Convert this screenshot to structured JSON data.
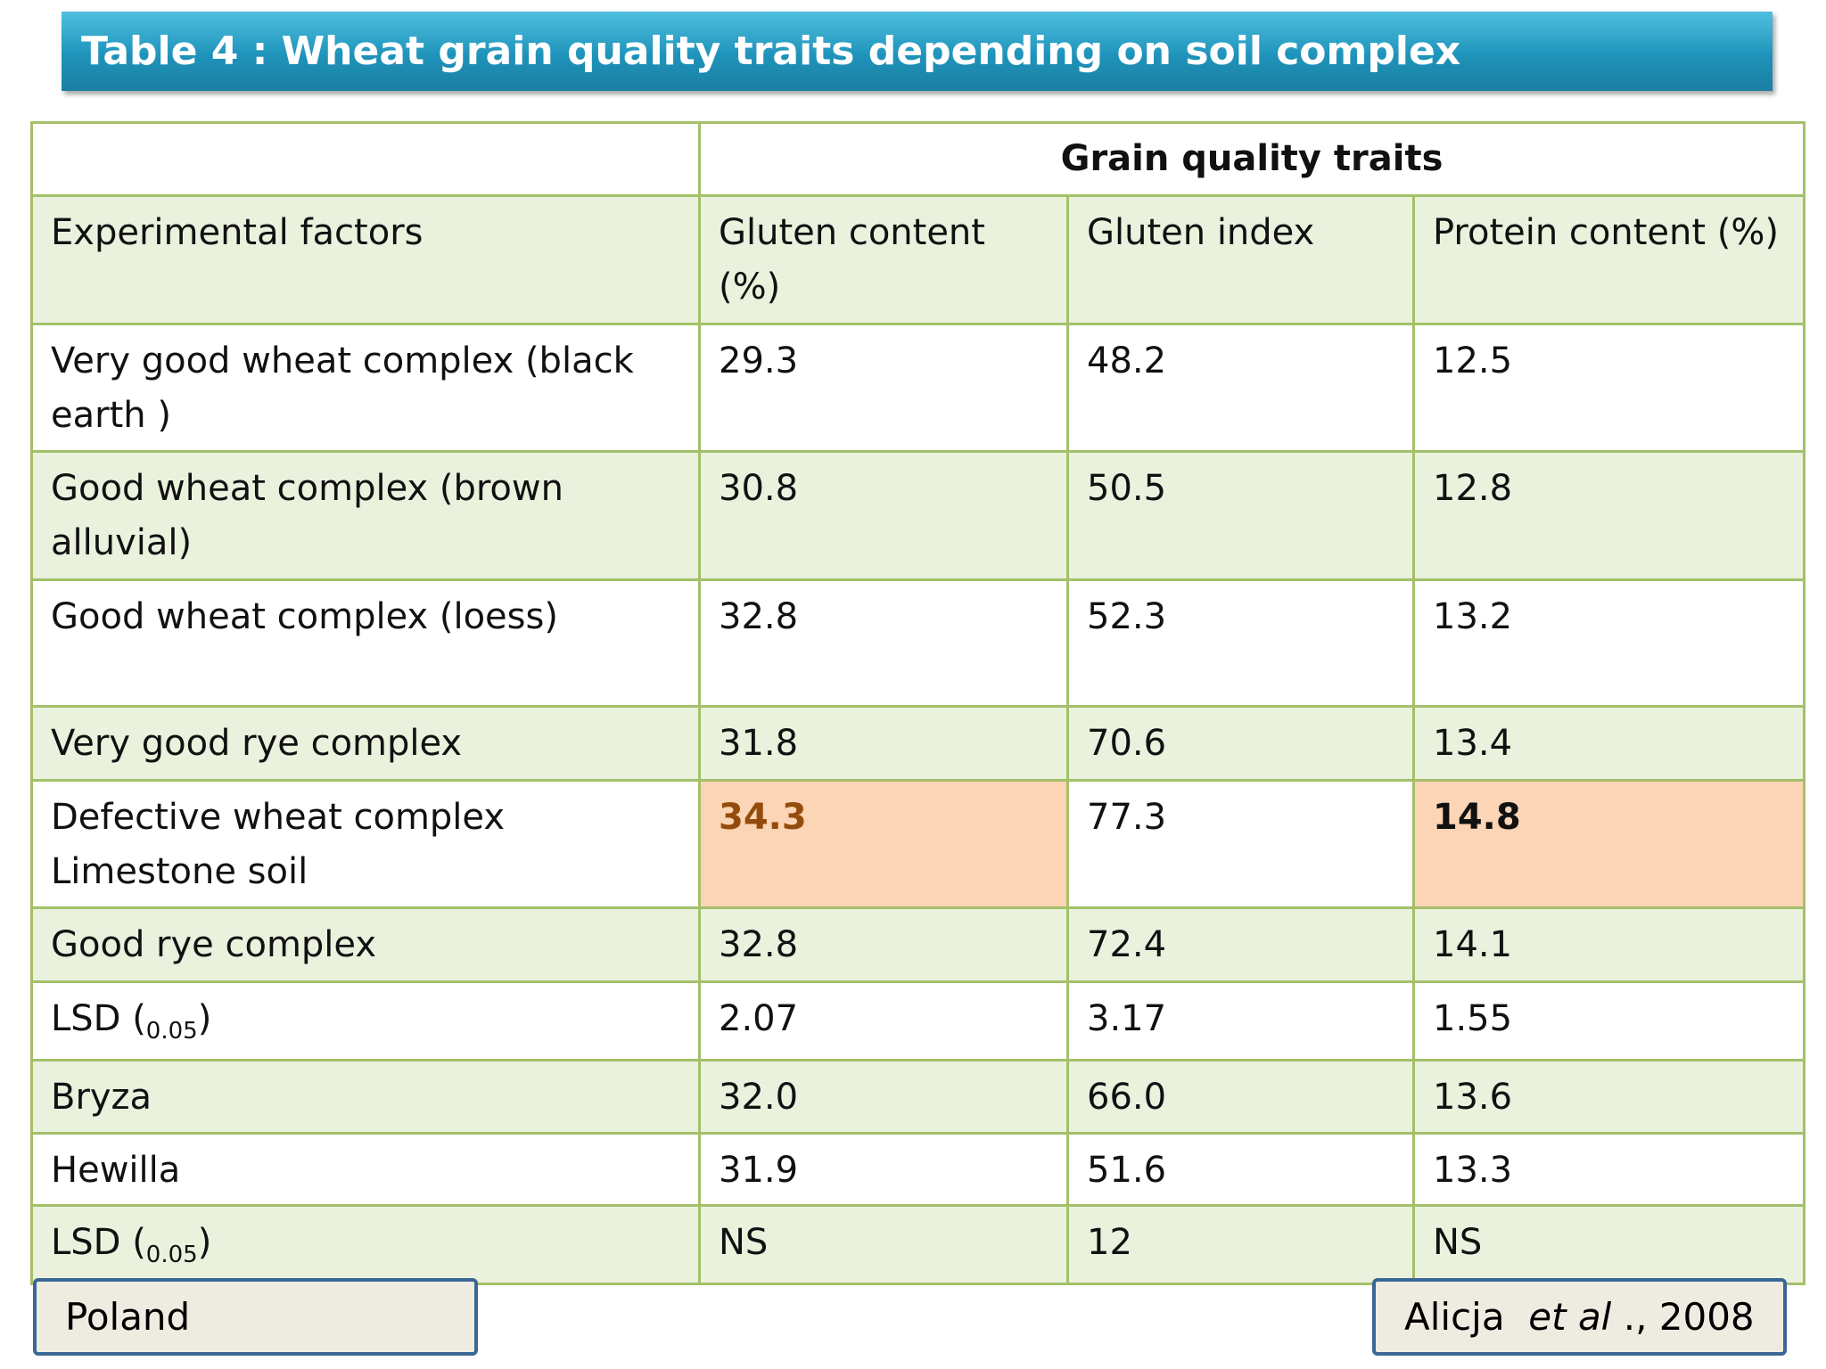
{
  "title": "Table 4 : Wheat grain quality traits depending on soil complex",
  "table": {
    "group_header": "Grain quality traits",
    "columns": [
      "Experimental factors",
      "Gluten content (%)",
      "Gluten index",
      "Protein content (%)"
    ],
    "rows": [
      [
        "Very good wheat complex (black earth  )",
        "29.3",
        "48.2",
        "12.5"
      ],
      [
        "Good wheat complex (brown alluvial)",
        "30.8",
        "50.5",
        "12.8"
      ],
      [
        "Good wheat complex (loess)",
        "32.8",
        "52.3",
        "13.2"
      ],
      [
        "Very good rye complex",
        "31.8",
        "70.6",
        "13.4"
      ],
      [
        "Defective wheat complex Limestone soil",
        "34.3",
        "77.3",
        "14.8"
      ],
      [
        "Good rye complex",
        "32.8",
        "72.4",
        "14.1"
      ],
      [
        {
          "label": "LSD (",
          "sub": "0.05",
          "end": ")"
        },
        "2.07",
        "3.17",
        "1.55"
      ],
      [
        "Bryza",
        "32.0",
        "66.0",
        "13.6"
      ],
      [
        "Hewilla",
        "31.9",
        "51.6",
        "13.3"
      ],
      [
        {
          "label": "LSD (",
          "sub": "0.05",
          "end": ")"
        },
        "NS",
        "12",
        "NS"
      ]
    ]
  },
  "footer": {
    "country": "Poland",
    "citation": {
      "author": "Alicja",
      "etal": "et al",
      "year": "., 2008"
    }
  }
}
